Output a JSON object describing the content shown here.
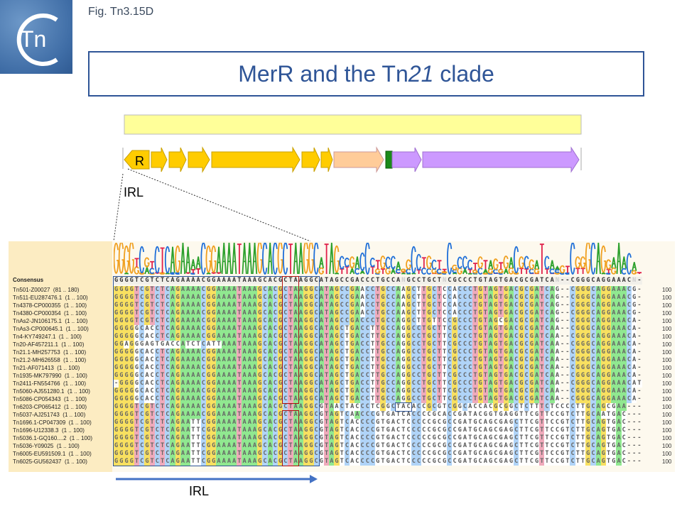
{
  "header": {
    "figure_label": "Fig. Tn3.15D",
    "logo_text": "Tn",
    "title_prefix": "MerR and the Tn",
    "title_italic": "21",
    "title_suffix": " clade"
  },
  "gene_map": {
    "r_label": "R",
    "irl_label": "IRL",
    "colors": {
      "backbone": "#ffff99",
      "mer": "#ffcc00",
      "peach": "#ffcc99",
      "green": "#1a8a1a",
      "purple": "#cc99ff"
    }
  },
  "bottom_arrow_label": "IRL",
  "colors": {
    "A": "#90e890",
    "C": "#b0d4f8",
    "G": "#f8e060",
    "T": "#f0aabb",
    "logoA": "#2ca02c",
    "logoC": "#1f6fd8",
    "logoG": "#f0a020",
    "logoT": "#e0204a",
    "box_red": "#b01010",
    "box_blue": "#2f5597"
  },
  "alignment": {
    "consensus_label": "Consensus",
    "consensus": "GGGGTCGTCTCAGAAAACGGAAAATAAAGCACGCTAAGGCATAGCCGACCCTGCCANGCCTGCTNCGCCCTGTAGTGACGCGATCAN--CGGGCAGGAAACN-",
    "rows": [
      {
        "name": "Tn501-Z00027  (81 .. 180)",
        "seq": "GGGGTCGTCTCAGAAAACGGAAAATAAAGCACGCTAAGGCATAGCCGAACCTGCCAAGCTTGCTCCACCCTGTAGTGACGCGATCAG--CGGGCAGGAAACG-",
        "count": "100"
      },
      {
        "name": "Tn511-EU287476.1  (1 .. 100)",
        "seq": "GGGGTCGTCTCAGAAAACGGAAAATAAAGCACGCTAAGGCATAGCCGAACCTGCCAAGCTTGCTCCACCCTGTAGTGACGCGATCAG--CGGGCAGGAAACG-",
        "count": "100"
      },
      {
        "name": "Tn4378-CP000355  (1 .. 100)",
        "seq": "GGGGTCGTCTCAGAAAACGGAAAATAAAGCACGCTAAGGCATAGCCGAACCTGCCAAGCTTGCTCCACCCTGTAGTGACGCGATCAG--CGGGCAGGAAACG-",
        "count": "100"
      },
      {
        "name": "Tn4380-CP000354  (1 .. 100)",
        "seq": "GGGGTCGTCTCAGAAAACGGAAAATAAAGCACGCTAAGGCATAGCCGAACCTGCCAAGCTTGCTCCACCCTGTAGTGACGCGATCAG--CGGGCAGGAAACG-",
        "count": "100"
      },
      {
        "name": "TnAs2-JN106175.1  (1 .. 100)",
        "seq": "GGGGTCGTCTCAGAAAACGGAAAATAAAGCACGCTAAGGCATAGCCGACCCTGCCAGGCTTGTTCCGCCCTGTAGCGACGCGATCAG--CGGGCAGGAAACA-",
        "count": "100"
      },
      {
        "name": "TnAs3-CP000645.1  (1 .. 100)",
        "seq": "GGGGGCACCTCAGAAAACGGAAAATAAAGCACGCTAAGGCATAGCTGACCTTGCCAGGCCTGCTTCGCCCTGTAGTGACGCGATCAA--CGGGCAGGAAACA-",
        "count": "100"
      },
      {
        "name": "Tn4-KY749247.1  (1 .. 100)",
        "seq": "GGGGGCACCTCAGAAAACGGAAAATAAAGCACGCTAAGGCATAGCTGACCTTGCCAGGCCTGCTTCGCCCTGTAGTGACGCGATCAA--CGGGCAGGAAACA-",
        "count": "100"
      },
      {
        "name": "Tn20-AF457211.1  (1 .. 100)",
        "seq": "GGAGGGAGTGACCATCTCATTAAATAAAGCACGCTAAGGCATAGCTGACCTTGCCAGGCCTGCTTCGCCCTGTAGTGACGCGATCAA--CGGGCAGGAAACA-",
        "count": "100"
      },
      {
        "name": "Tn21.1-MH257753  (1 .. 100)",
        "seq": "GGGGGCACCTCAGAAAACGGAAAATAAAGCACGCTAAGGCATAGCTGACCTTGCCAGGCCTGCTTCGCCCTGTAGTGACGCGATCAA--CGGGCAGGAAACA-",
        "count": "100"
      },
      {
        "name": "Tn21.2-MH626558  (1 .. 100)",
        "seq": "GGGGGCACCTCAGAAAACGGAAAATAAAGCACGCTAAGGCATAGCTGACCTTGCCAGGCCTGCTTCGCCCTGTAGTGACGCGATCAA--CGGGCAGGAAACA-",
        "count": "100"
      },
      {
        "name": "Tn21-AF071413  (1 .. 100)",
        "seq": "GGGGGCACCTCAGAAAACGGAAAATAAAGCACGCTAAGGCATAGCTGACCTTGCCAGGCCTGCTTCGCCCTGTAGTGACGCGATCAA--CGGGCAGGAAACA-",
        "count": "100"
      },
      {
        "name": "Tn1935-MK797990  (1 .. 100)",
        "seq": "GGGGGCACCTCAGAAAACGGAAAATAAAGCACGCTAAGGCATAGCTGACCTTGCCAGGCCTGCTTCGCCCTGTAGTGACGCGATCAA--CGGGCAGGAAACA-",
        "count": "100"
      },
      {
        "name": "Tn2411-FN554766  (1 .. 100)",
        "seq": "-GGGGCACCTCAGAAAACGGAAAATAAAGCACGCTAAGGCATAGCTGACCTTGCCAGGCCTGCTTCGCCCTGTAGTGACGCGATCAA--CGGGCAGGAAACAT",
        "count": "100"
      },
      {
        "name": "Tn5060-AJ551280.1  (1 .. 100)",
        "seq": "GGGGGCACCTCAGAAAACGGAAAATAAAGCACGCTAAGGCATAGCTGACCTTGCCAGGCCTGCTTCGCCCTGTAGTGACGCGATCAA--CGGGCAGGAAACA-",
        "count": "100"
      },
      {
        "name": "Tn5086-CP054343  (1 .. 100)",
        "seq": "GGGGGCACCTCAGAAAACGGAAAATAAAGCACGCTAAGGCATAGCTGACCTTGCCAGGCCTGCTTCGCCCTGTAGTGACGCGATCAA--CGGGCAGGAAACA-",
        "count": "100"
      },
      {
        "name": "Tn6203-CP065412  (1 .. 100)",
        "seq": "GGGGTCGTCTCAGAAAACGGAAAATAAAGCACGCTAAGGCGTAACTACCCTCGGCTACACCGCGTCGGCACCACGCGGCTCTTTCTCCCCTTGCAGCGAA---",
        "count": "100"
      },
      {
        "name": "Tn5037-AJ251743  (1 .. 100)",
        "seq": "GGGGTCGTCTCAGAAAACGGAAAATAAAGCACGCTAAGGCGTAGTCAACCCGTGATCACCCCGCACCGATACGGTGAGGTTCGTTCCGTCTTGCAATGAC---",
        "count": "100"
      },
      {
        "name": "Tn1696.1-CP047309  (1 .. 100)",
        "seq": "GGGGTCGTCTCAGAATTCGGAAAATAAAGCACGCTAAGGCGTAGTCACCCCGTGACTCCCCCGCGCCGATGCAGCGAGCTTCGTTCCGTCTTGCAGTGAC---",
        "count": "100"
      },
      {
        "name": "Tn1696-U12338.3  (1 .. 100)",
        "seq": "GGGGTCGTCTCAGAATTCGGAAAATAAAGCACGCTAAGGCGTAGTCACCCCGTGACTCCCCCGCGCCGATGCAGCGAGCTTCGTTCCGTCTTGCAGTGAC---",
        "count": "100"
      },
      {
        "name": "Tn5036.1-GQ160....2  (1 .. 100)",
        "seq": "GGGGTCGTCTCAGAATTCGGAAAATAAAGCACGCTAAGGCGTAGTCACCCCGTGACTCCCCCGCGCCGATGCAGCGAGCTTCGTTCCGTCTTGCAGTGAC---",
        "count": "100"
      },
      {
        "name": "Tn5036-Y09025  (1 .. 100)",
        "seq": "GGGGTCGTCTCAGAATTCGGAAAATAAAGCACGCTAAGGCGTAGTCACCCCGTGACTCCCCCGCGCCGATGCAGCGAGCTTCGTTCCGTCTTGCAGTGAC---",
        "count": "100"
      },
      {
        "name": "Tn6005-EU591509.1  (1 .. 100)",
        "seq": "GGGGTCGTCTCAGAATTCGGAAAATAAAGCACGCTAAGGCGTAGTCACCCCGTGACTCCCCCGCGCCGATGCAGCGAGCTTCGTTCCGTCTTGCAGTGAC---",
        "count": "100"
      },
      {
        "name": "Tn6025-GU562437  (1 .. 100)",
        "seq": "GGGGTCGTCTCAGAATTCGGAAAATAAAGCACGCTAAGGCGTAGTCACCCCGTGACTCCCCCGCGCCGATGCAGCGAGCTTCGTTCCGTCTTGCAGTGAC---",
        "count": "100"
      }
    ]
  }
}
